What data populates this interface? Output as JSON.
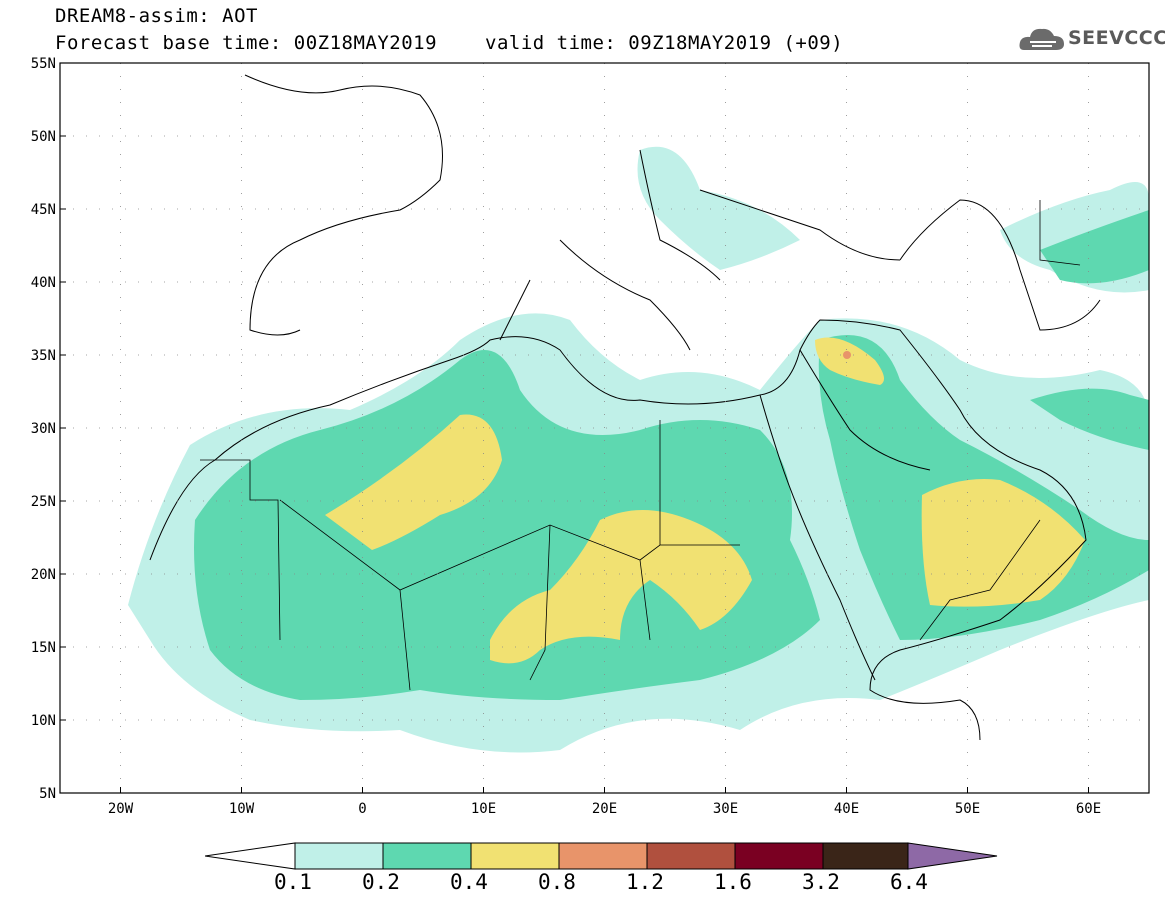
{
  "header": {
    "title": "DREAM8-assim: AOT",
    "base_time": "Forecast base time: 00Z18MAY2019",
    "valid_time": "valid time: 09Z18MAY2019 (+09)",
    "logo_text": "SEEVCCC"
  },
  "map": {
    "lat_labels": [
      "55N",
      "50N",
      "45N",
      "40N",
      "35N",
      "30N",
      "25N",
      "20N",
      "15N",
      "10N",
      "5N"
    ],
    "lon_labels": [
      "20W",
      "10W",
      "0",
      "10E",
      "20E",
      "30E",
      "40E",
      "50E",
      "60E"
    ],
    "lon_range": [
      -25,
      65
    ],
    "lat_range": [
      5,
      55
    ]
  },
  "legend": {
    "levels": [
      "0.1",
      "0.2",
      "0.4",
      "0.8",
      "1.2",
      "1.6",
      "3.2",
      "6.4"
    ],
    "colors": [
      "#ffffff",
      "#c0f0e8",
      "#5ed8b0",
      "#f1e172",
      "#e8946a",
      "#b0503e",
      "#7a0022",
      "#3a2518",
      "#8e69a6"
    ]
  }
}
